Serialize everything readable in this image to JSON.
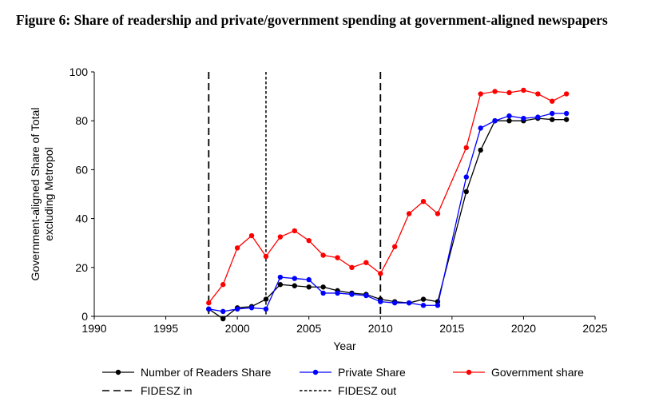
{
  "figure": {
    "title": "Figure 6: Share of readership and private/government spending at government-aligned newspapers"
  },
  "chart_data": {
    "type": "line",
    "xlabel": "Year",
    "ylabel_lines": [
      "Government-aligned Share of Total",
      "excluding Metropol"
    ],
    "xlim": [
      1990,
      2025
    ],
    "ylim": [
      0,
      100
    ],
    "x_ticks": [
      1990,
      1995,
      2000,
      2005,
      2010,
      2015,
      2020,
      2025
    ],
    "y_ticks": [
      0,
      20,
      40,
      60,
      80,
      100
    ],
    "grid": false,
    "legend_position": "bottom",
    "series": [
      {
        "name": "Number of Readers Share",
        "color": "#000000",
        "x": [
          1998,
          1999,
          2000,
          2001,
          2002,
          2003,
          2004,
          2005,
          2006,
          2007,
          2008,
          2009,
          2010,
          2011,
          2012,
          2013,
          2014,
          2016,
          2017,
          2018,
          2019,
          2020,
          2021,
          2022,
          2023
        ],
        "values": [
          3,
          -1,
          3.5,
          4,
          7,
          13,
          12.5,
          12,
          12,
          10.5,
          9.5,
          9,
          7,
          6,
          5.5,
          7,
          6,
          51,
          68,
          80,
          80,
          80,
          81,
          80.5,
          80.5
        ]
      },
      {
        "name": "Private Share",
        "color": "#0000ff",
        "x": [
          1998,
          1999,
          2000,
          2001,
          2002,
          2003,
          2004,
          2005,
          2006,
          2007,
          2008,
          2009,
          2010,
          2011,
          2012,
          2013,
          2014,
          2016,
          2017,
          2018,
          2019,
          2020,
          2021,
          2022,
          2023
        ],
        "values": [
          3,
          2,
          3,
          3.5,
          3,
          16,
          15.5,
          15,
          9.5,
          9.5,
          9,
          8.5,
          6,
          5.5,
          5.5,
          4.5,
          4.5,
          57,
          77,
          80,
          82,
          81,
          81.5,
          83,
          83
        ]
      },
      {
        "name": "Government share",
        "color": "#ff0000",
        "x": [
          1998,
          1999,
          2000,
          2001,
          2002,
          2003,
          2004,
          2005,
          2006,
          2007,
          2008,
          2009,
          2010,
          2011,
          2012,
          2013,
          2014,
          2016,
          2017,
          2018,
          2019,
          2020,
          2021,
          2022,
          2023
        ],
        "values": [
          5.5,
          13,
          28,
          33,
          24.5,
          32.5,
          35,
          31,
          25,
          24,
          20,
          22,
          17.5,
          28.5,
          42,
          47,
          42,
          69,
          91,
          92,
          91.5,
          92.5,
          91,
          88,
          91
        ]
      }
    ],
    "vlines": [
      {
        "x": 1998,
        "style": "long-dash"
      },
      {
        "x": 2002,
        "style": "short-dash"
      },
      {
        "x": 2010,
        "style": "long-dash"
      }
    ],
    "legend": [
      {
        "label": "Number of Readers Share",
        "kind": "marker-line",
        "color": "#000000"
      },
      {
        "label": "Private Share",
        "kind": "marker-line",
        "color": "#0000ff"
      },
      {
        "label": "Government share",
        "kind": "marker-line",
        "color": "#ff0000"
      },
      {
        "label": "FIDESZ in",
        "kind": "long-dash",
        "color": "#000000"
      },
      {
        "label": "FIDESZ out",
        "kind": "short-dash",
        "color": "#000000"
      }
    ]
  }
}
